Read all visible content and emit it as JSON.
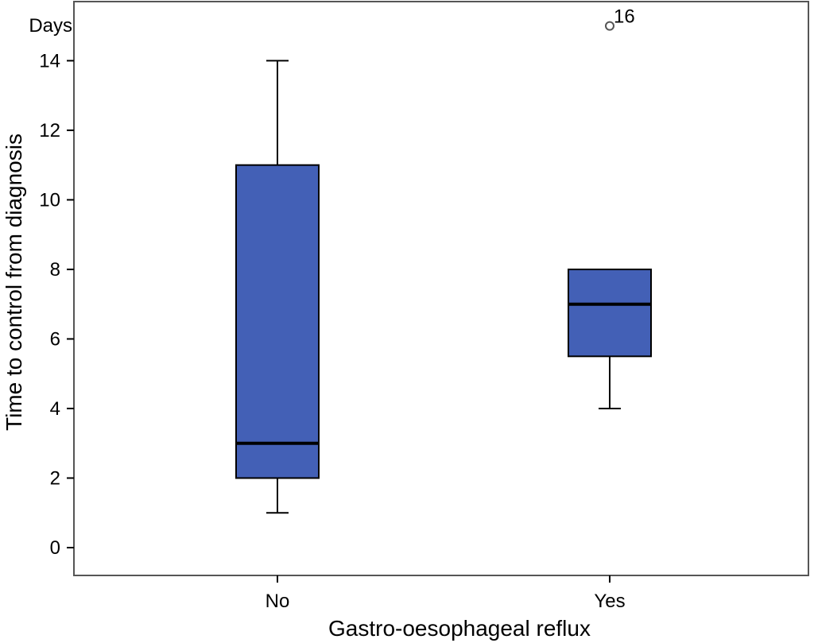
{
  "chart_data": {
    "type": "boxplot",
    "xlabel": "Gastro-oesophageal reflux",
    "ylabel": "Time to control from diagnosis",
    "unit_label": "Days",
    "categories": [
      "No",
      "Yes"
    ],
    "ylim": [
      -0.8,
      15.7
    ],
    "yticks": [
      "0",
      "2",
      "4",
      "6",
      "8",
      "10",
      "12",
      "14"
    ],
    "boxes": [
      {
        "category": "No",
        "whisker_low": 1,
        "q1": 2,
        "median": 3,
        "q3": 11,
        "whisker_high": 14
      },
      {
        "category": "Yes",
        "whisker_low": 4,
        "q1": 5.5,
        "median": 7,
        "q3": 8,
        "whisker_high": 8
      }
    ],
    "outliers": [
      {
        "category": "Yes",
        "value": 15,
        "label": "16"
      }
    ],
    "box_color": "#4360b6",
    "grid": false
  }
}
